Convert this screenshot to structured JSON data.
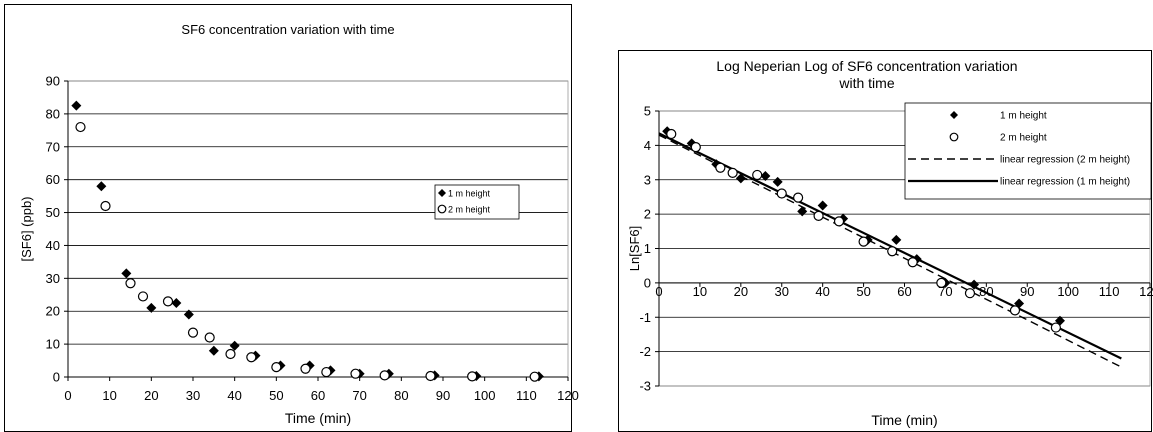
{
  "charts": [
    {
      "type": "scatter",
      "title": "SF6 concentration variation with time",
      "xlabel": "Time (min)",
      "ylabel": "[SF6] (ppb)",
      "xlim": [
        0,
        120
      ],
      "ylim": [
        0,
        90
      ],
      "xticks": [
        0,
        10,
        20,
        30,
        40,
        50,
        60,
        70,
        80,
        90,
        100,
        110,
        120
      ],
      "yticks": [
        0,
        10,
        20,
        30,
        40,
        50,
        60,
        70,
        80,
        90
      ],
      "grid": "horizontal",
      "legend_position": "right",
      "series": [
        {
          "name": "1 m height",
          "marker": "diamond-filled",
          "x": [
            2,
            8,
            14,
            20,
            26,
            29,
            35,
            40,
            45,
            51,
            58,
            63,
            70,
            77,
            88,
            98,
            113
          ],
          "y": [
            82.5,
            58,
            31.5,
            21,
            22.5,
            19,
            8,
            9.5,
            6.5,
            3.5,
            3.5,
            2,
            1,
            1,
            0.5,
            0.3,
            0.2
          ]
        },
        {
          "name": "2 m height",
          "marker": "circle-open",
          "x": [
            3,
            9,
            15,
            18,
            24,
            30,
            34,
            39,
            44,
            50,
            57,
            62,
            69,
            76,
            87,
            97,
            112
          ],
          "y": [
            76,
            52,
            28.5,
            24.5,
            23,
            13.5,
            12,
            7,
            6,
            3,
            2.5,
            1.5,
            1,
            0.5,
            0.3,
            0.2,
            0.1
          ]
        }
      ]
    },
    {
      "type": "scatter",
      "title_lines": [
        "Log Neperian Log of SF6 concentration variation",
        "with time"
      ],
      "xlabel": "Time (min)",
      "ylabel": "Ln[SF6]",
      "xlim": [
        0,
        120
      ],
      "ylim": [
        -3,
        5
      ],
      "xticks": [
        0,
        10,
        20,
        30,
        40,
        50,
        60,
        70,
        80,
        90,
        100,
        110,
        120
      ],
      "xtick_labels": [
        "0",
        "10",
        "20",
        "30",
        "40",
        "50",
        "60",
        "70",
        "80",
        "90",
        "100",
        "110",
        "120"
      ],
      "yticks": [
        -3,
        -2,
        -1,
        0,
        1,
        2,
        3,
        4,
        5
      ],
      "grid": "horizontal",
      "legend_position": "top-right",
      "series": [
        {
          "name": "1 m height",
          "marker": "diamond-filled",
          "x": [
            2,
            8,
            14,
            20,
            26,
            29,
            35,
            40,
            45,
            51,
            58,
            63,
            70,
            77,
            88,
            98
          ],
          "y": [
            4.41,
            4.06,
            3.45,
            3.04,
            3.11,
            2.94,
            2.08,
            2.25,
            1.87,
            1.25,
            1.25,
            0.69,
            0.0,
            -0.05,
            -0.6,
            -1.1
          ]
        },
        {
          "name": "2 m height",
          "marker": "circle-open",
          "x": [
            3,
            9,
            15,
            18,
            24,
            30,
            34,
            39,
            44,
            50,
            57,
            62,
            69,
            76,
            87,
            97
          ],
          "y": [
            4.33,
            3.95,
            3.35,
            3.2,
            3.14,
            2.6,
            2.48,
            1.95,
            1.79,
            1.2,
            0.92,
            0.6,
            0.0,
            -0.3,
            -0.8,
            -1.3
          ]
        },
        {
          "name": "linear regression (2 m height)",
          "style": "dashed",
          "x": [
            0,
            113
          ],
          "y": [
            4.3,
            -2.45
          ]
        },
        {
          "name": "linear regression (1 m height)",
          "style": "solid-thick",
          "x": [
            0,
            113
          ],
          "y": [
            4.35,
            -2.2
          ]
        }
      ]
    }
  ]
}
